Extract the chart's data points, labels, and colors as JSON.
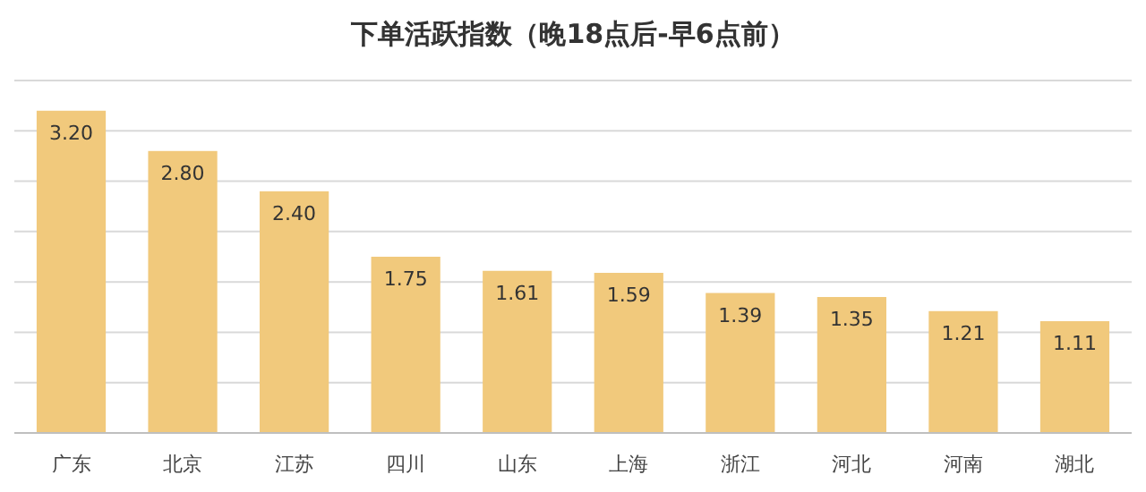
{
  "chart_data": {
    "type": "bar",
    "title": "下单活跃指数（晚18点后-早6点前）",
    "categories": [
      "广东",
      "北京",
      "江苏",
      "四川",
      "山东",
      "上海",
      "浙江",
      "河北",
      "河南",
      "湖北"
    ],
    "values": [
      3.2,
      2.8,
      2.4,
      1.75,
      1.61,
      1.59,
      1.39,
      1.35,
      1.21,
      1.11
    ],
    "color": "#f1c97c",
    "ylim": [
      0,
      3.5
    ],
    "yticks": [
      {
        "value": 0,
        "label": null
      },
      {
        "value": 0.5,
        "label": null
      },
      {
        "value": 1,
        "label": null
      },
      {
        "value": 1.5,
        "label": null
      },
      {
        "value": 2,
        "label": null
      },
      {
        "value": 2.5,
        "label": null
      },
      {
        "value": 3,
        "label": null
      },
      {
        "value": 3.5,
        "label": null
      }
    ],
    "value_labels": [
      "3.20",
      "2.80",
      "2.40",
      "1.75",
      "1.61",
      "1.59",
      "1.39",
      "1.35",
      "1.21",
      "1.11"
    ],
    "tick_labels": "x",
    "grid": "y"
  }
}
